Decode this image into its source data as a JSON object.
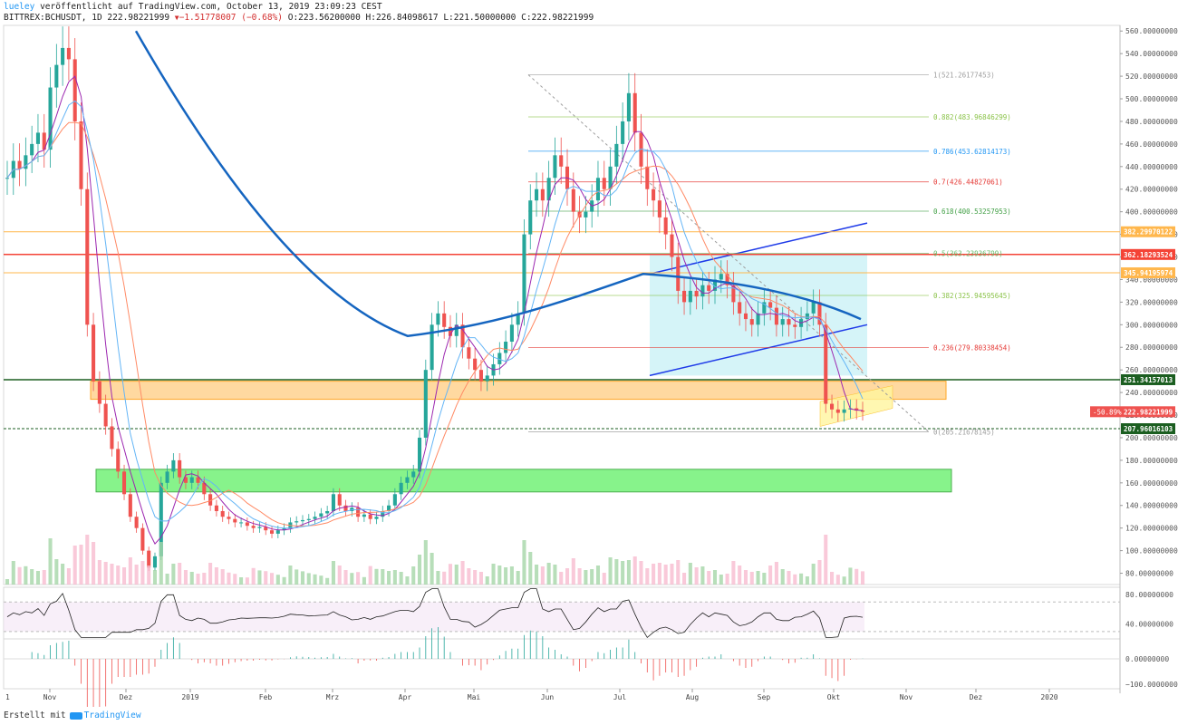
{
  "header": {
    "author": "lueley",
    "published_text": "veröffentlicht auf TradingView.com, October 13, 2019 23:09:23 CEST",
    "symbol": "BITTREX:BCHUSDT, 1D",
    "last_price": "222.98221999",
    "change": "−1.51778007 (−0.68%)",
    "ohlc": "O:223.56200000 H:226.84098617 L:221.50000000 C:222.98221999",
    "down_marker": "▼"
  },
  "footer": {
    "prefix": "Erstellt mit",
    "brand": "TradingView"
  },
  "colors": {
    "bull": "#26a69a",
    "bear": "#ef5350",
    "sma_blue": "#1565c0",
    "channel_fill": "#b2ebf2",
    "zone_orange": "#ffcc80",
    "zone_green": "#69f06e",
    "zone_yellow": "#fff59d",
    "bollinger_fill": "#cfe8e6",
    "line_red": "#f44336",
    "line_darkgreen": "#1b5e20"
  },
  "chart_data": {
    "type": "candlestick",
    "x_ticks": [
      "Nov",
      "Dez",
      "2019",
      "Feb",
      "Mrz",
      "Apr",
      "Mai",
      "Jun",
      "Jul",
      "Aug",
      "Sep",
      "Okt",
      "Nov",
      "Dez",
      "2020"
    ],
    "x_edge_label": "1",
    "y_axis": [
      "560.00000000",
      "540.00000000",
      "520.00000000",
      "500.00000000",
      "480.00000000",
      "460.00000000",
      "440.00000000",
      "420.00000000",
      "400.00000000",
      "380.00000000",
      "360.00000000",
      "340.00000000",
      "320.00000000",
      "300.00000000",
      "280.00000000",
      "260.00000000",
      "240.00000000",
      "220.00000000",
      "200.00000000",
      "180.00000000",
      "160.00000000",
      "140.00000000",
      "120.00000000",
      "100.00000000",
      "80.00000000"
    ],
    "ylim": [
      70,
      565
    ],
    "fib_levels": [
      {
        "label": "1(521.26177453)",
        "value": 521.26,
        "color": "#9e9e9e"
      },
      {
        "label": "0.882(483.96846299)",
        "value": 483.97,
        "color": "#8bc34a"
      },
      {
        "label": "0.786(453.62814173)",
        "value": 453.63,
        "color": "#2196f3"
      },
      {
        "label": "0.7(426.44827061)",
        "value": 426.45,
        "color": "#e53935"
      },
      {
        "label": "0.618(400.53257953)",
        "value": 400.53,
        "color": "#43a047"
      },
      {
        "label": "0.5(363.23936799)",
        "value": 363.24,
        "color": "#66bb6a"
      },
      {
        "label": "0.382(325.94595645)",
        "value": 325.95,
        "color": "#8bc34a"
      },
      {
        "label": "0.236(279.80338454)",
        "value": 279.8,
        "color": "#e53935"
      },
      {
        "label": "0(205.21678145)",
        "value": 205.22,
        "color": "#9e9e9e"
      }
    ],
    "price_tags": [
      {
        "label": "382.29970122",
        "value": 382.3,
        "bg": "#ffb74d",
        "fg": "#ffffff"
      },
      {
        "label": "362.18293524",
        "value": 362.18,
        "bg": "#f44336",
        "fg": "#ffffff"
      },
      {
        "label": "345.94195974",
        "value": 345.94,
        "bg": "#ffb74d",
        "fg": "#ffffff"
      },
      {
        "label": "251.34157013",
        "value": 251.34,
        "bg": "#1b5e20",
        "fg": "#ffffff"
      },
      {
        "label": "222.98221999",
        "value": 222.98,
        "bg": "#ef5350",
        "fg": "#ffffff"
      },
      {
        "label": "207.96016103",
        "value": 207.96,
        "bg": "#1b5e20",
        "fg": "#ffffff"
      }
    ],
    "change_badge": "-50.89%",
    "rsi_axis": [
      "80.00000000",
      "40.00000000"
    ],
    "macd_axis": [
      "0.00000000",
      "−100.00000000"
    ],
    "closes": [
      430,
      445,
      438,
      450,
      460,
      470,
      455,
      510,
      530,
      545,
      535,
      480,
      420,
      300,
      250,
      230,
      210,
      190,
      170,
      150,
      130,
      120,
      100,
      85,
      95,
      160,
      170,
      180,
      165,
      160,
      165,
      160,
      150,
      140,
      135,
      130,
      128,
      125,
      125,
      122,
      120,
      121,
      118,
      115,
      118,
      120,
      125,
      126,
      127,
      128,
      130,
      133,
      135,
      150,
      140,
      135,
      138,
      130,
      132,
      128,
      130,
      135,
      140,
      150,
      160,
      165,
      170,
      200,
      260,
      300,
      310,
      298,
      290,
      300,
      280,
      270,
      260,
      250,
      255,
      265,
      275,
      285,
      300,
      310,
      380,
      410,
      420,
      410,
      430,
      450,
      440,
      420,
      400,
      395,
      400,
      410,
      430,
      420,
      440,
      460,
      480,
      505,
      470,
      440,
      420,
      410,
      395,
      380,
      360,
      330,
      320,
      330,
      325,
      335,
      330,
      340,
      345,
      335,
      320,
      310,
      305,
      300,
      310,
      320,
      315,
      300,
      305,
      300,
      298,
      305,
      310,
      320,
      300,
      230,
      225,
      222,
      225,
      226,
      224,
      223
    ]
  }
}
